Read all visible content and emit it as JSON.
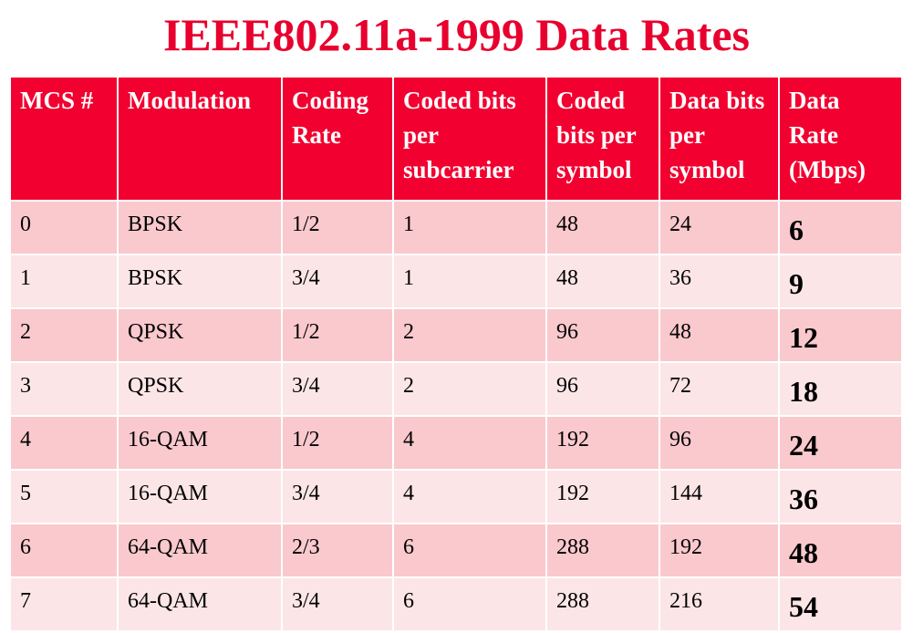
{
  "title": "IEEE802.11a-1999 Data Rates",
  "colors": {
    "title": "#e8002e",
    "header_bg": "#f20030",
    "row_odd_bg": "#f9c9cd",
    "row_even_bg": "#fce5e7"
  },
  "table": {
    "headers": [
      "MCS #",
      "Modulation",
      "Coding Rate",
      "Coded bits per subcarrier",
      "Coded bits per symbol",
      "Data bits per symbol",
      "Data Rate (Mbps)"
    ],
    "rows": [
      [
        "0",
        "BPSK",
        "1/2",
        "1",
        "48",
        "24",
        "6"
      ],
      [
        "1",
        "BPSK",
        "3/4",
        "1",
        "48",
        "36",
        "9"
      ],
      [
        "2",
        "QPSK",
        "1/2",
        "2",
        "96",
        "48",
        "12"
      ],
      [
        "3",
        "QPSK",
        "3/4",
        "2",
        "96",
        "72",
        "18"
      ],
      [
        "4",
        "16-QAM",
        "1/2",
        "4",
        "192",
        "96",
        "24"
      ],
      [
        "5",
        "16-QAM",
        "3/4",
        "4",
        "192",
        "144",
        "36"
      ],
      [
        "6",
        "64-QAM",
        "2/3",
        "6",
        "288",
        "192",
        "48"
      ],
      [
        "7",
        "64-QAM",
        "3/4",
        "6",
        "288",
        "216",
        "54"
      ]
    ]
  }
}
